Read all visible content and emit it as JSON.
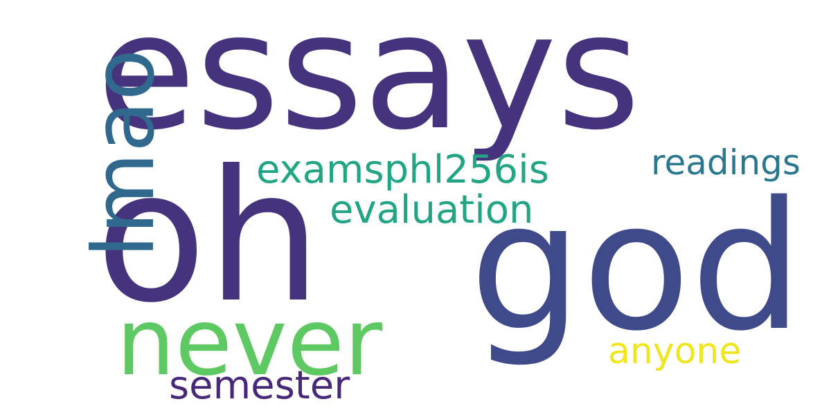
{
  "words": [
    {
      "text": "essays",
      "color": "#46337e"
    },
    {
      "text": "oh",
      "color": "#46337e"
    },
    {
      "text": "god",
      "color": "#3e4a89"
    },
    {
      "text": "never",
      "color": "#5ec962"
    },
    {
      "text": "lmao",
      "color": "#31688e"
    },
    {
      "text": "examsphl256is",
      "color": "#21a585"
    },
    {
      "text": "evaluation",
      "color": "#21a585"
    },
    {
      "text": "readings",
      "color": "#2a788e"
    },
    {
      "text": "anyone",
      "color": "#f1e51d"
    },
    {
      "text": "semester",
      "color": "#482878"
    }
  ]
}
